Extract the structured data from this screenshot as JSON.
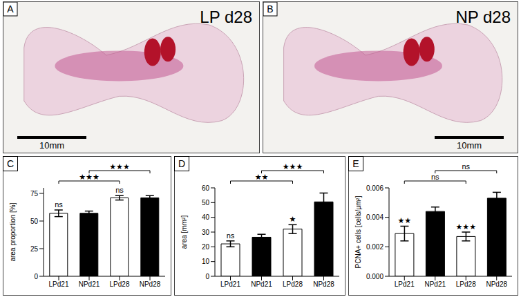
{
  "panels": [
    {
      "letter": "A",
      "label": "LP d28",
      "scale_bar": "10mm"
    },
    {
      "letter": "B",
      "label": "NP d28",
      "scale_bar": "10mm"
    }
  ],
  "chart_data": [
    {
      "panel": "C",
      "type": "bar",
      "categories": [
        "LPd21",
        "NPd21",
        "LPd28",
        "NPd28"
      ],
      "values": [
        57,
        57,
        71,
        71
      ],
      "errors": [
        3,
        2,
        2,
        2
      ],
      "colors": [
        "#ffffff",
        "#000000",
        "#ffffff",
        "#000000"
      ],
      "y_label": "area proportion [%]",
      "ylim": [
        0,
        80
      ],
      "yticks": [
        0,
        25,
        50,
        75
      ],
      "annotations": [
        {
          "category": "LPd21",
          "text": "ns"
        },
        {
          "category": "LPd28",
          "text": "ns"
        }
      ],
      "comparisons": [
        {
          "from": "LPd21",
          "to": "LPd28",
          "text": "★★★"
        },
        {
          "from": "NPd21",
          "to": "NPd28",
          "text": "★★★"
        }
      ]
    },
    {
      "panel": "D",
      "type": "bar",
      "categories": [
        "LPd21",
        "NPd21",
        "LPd28",
        "NPd28"
      ],
      "values": [
        22,
        26.5,
        32,
        50.5
      ],
      "errors": [
        2,
        2,
        3,
        6
      ],
      "colors": [
        "#ffffff",
        "#000000",
        "#ffffff",
        "#000000"
      ],
      "y_label": "area [mm²]",
      "ylim": [
        0,
        60
      ],
      "yticks": [
        0,
        10,
        20,
        30,
        40,
        50,
        60
      ],
      "annotations": [
        {
          "category": "LPd21",
          "text": "ns"
        },
        {
          "category": "LPd28",
          "text": "★"
        }
      ],
      "comparisons": [
        {
          "from": "LPd21",
          "to": "LPd28",
          "text": "★★"
        },
        {
          "from": "NPd21",
          "to": "NPd28",
          "text": "★★★"
        }
      ]
    },
    {
      "panel": "E",
      "type": "bar",
      "categories": [
        "LPd21",
        "NPd21",
        "LPd28",
        "NPd28"
      ],
      "values": [
        0.0029,
        0.0044,
        0.0027,
        0.0053
      ],
      "errors": [
        0.0005,
        0.0003,
        0.0003,
        0.0004
      ],
      "colors": [
        "#ffffff",
        "#000000",
        "#ffffff",
        "#000000"
      ],
      "y_label": "PCNA+ cells [cells/µm²]",
      "ylim": [
        0,
        0.006
      ],
      "yticks": [
        {
          "value": 0,
          "label": "0.000"
        },
        {
          "value": 0.002,
          "label": "0.002"
        },
        {
          "value": 0.004,
          "label": "0.004"
        },
        {
          "value": 0.006,
          "label": "0.006"
        }
      ],
      "annotations": [
        {
          "category": "LPd21",
          "text": "★★"
        },
        {
          "category": "LPd28",
          "text": "★★★"
        }
      ],
      "comparisons": [
        {
          "from": "LPd21",
          "to": "LPd28",
          "text": "ns"
        },
        {
          "from": "NPd21",
          "to": "NPd28",
          "text": "ns"
        }
      ]
    }
  ]
}
